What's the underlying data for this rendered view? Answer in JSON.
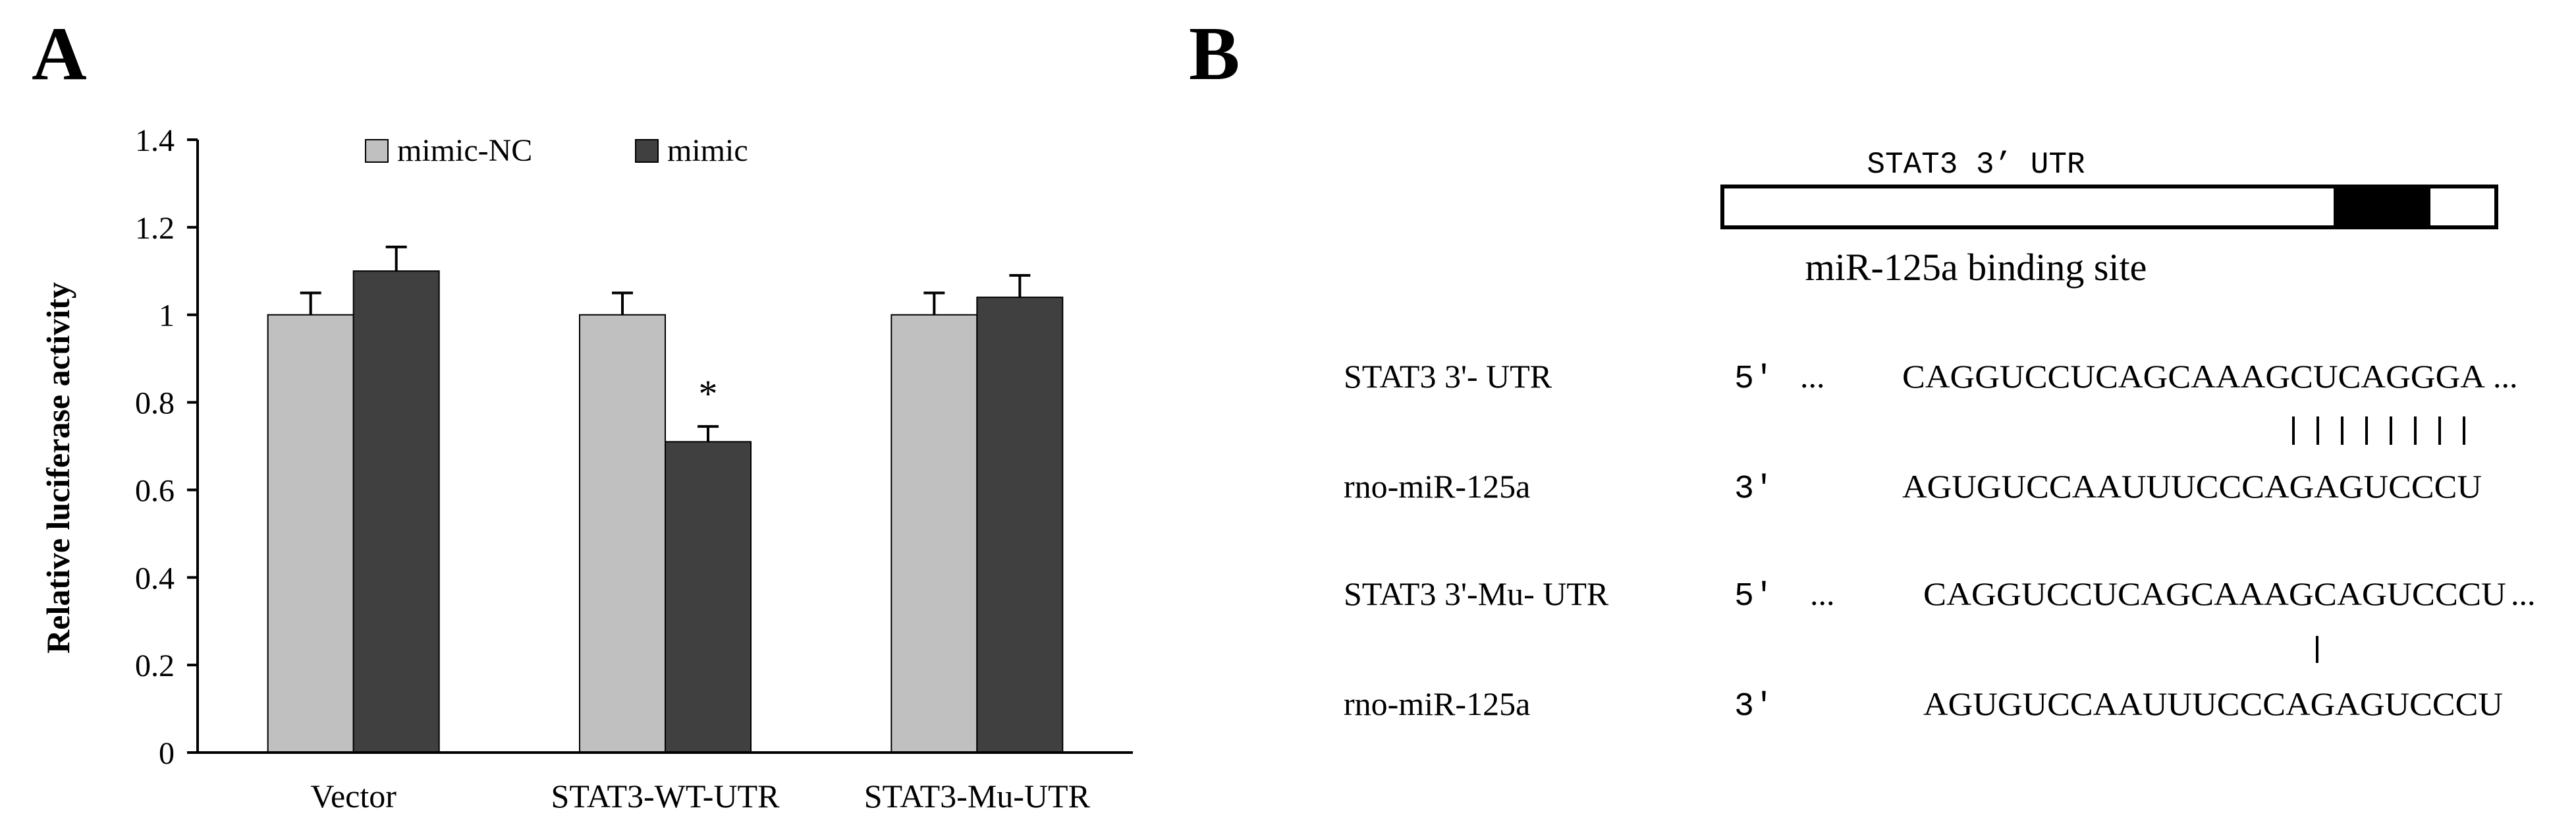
{
  "panels": {
    "a_letter": "A",
    "b_letter": "B"
  },
  "chart_data": {
    "type": "bar",
    "title": "",
    "xlabel": "",
    "ylabel": "Relative luciferase activity",
    "ylim": [
      0,
      1.4
    ],
    "yticks": [
      "0",
      "0.2",
      "0.4",
      "0.6",
      "0.8",
      "1",
      "1.2",
      "1.4"
    ],
    "categories": [
      "Vector",
      "STAT3-WT-UTR",
      "STAT3-Mu-UTR"
    ],
    "series": [
      {
        "name": "mimic-NC",
        "color": "#c0c0c0",
        "values": [
          1.0,
          1.0,
          1.0
        ],
        "errors": [
          0.05,
          0.05,
          0.05
        ]
      },
      {
        "name": "mimic",
        "color": "#404040",
        "values": [
          1.1,
          0.71,
          1.04
        ],
        "errors": [
          0.055,
          0.035,
          0.05
        ]
      }
    ],
    "annotations": [
      {
        "text": "*",
        "category": "STAT3-WT-UTR",
        "series": "mimic"
      }
    ],
    "legend": "top",
    "grid": false
  },
  "diagram": {
    "utr_label": "STAT3 3’ UTR",
    "binding_label": "miR-125a binding site",
    "rows": [
      {
        "name": "STAT3 3'- UTR",
        "prime": "5'",
        "dots_before": "...",
        "sequence": "CAGGUCCUCAGCAAAGCUCAGGGA",
        "dots_after": "..."
      },
      {
        "name": "rno-miR-125a",
        "prime": "3'",
        "dots_before": "",
        "sequence": "AGUGUCCAAUUUCCCAGAGUCCCU",
        "dots_after": ""
      },
      {
        "name": "STAT3 3'-Mu- UTR",
        "prime": "5'",
        "dots_before": "...",
        "sequence": "CAGGUCCUCAGCAAAGCAGUCCCU",
        "dots_after": "..."
      },
      {
        "name": "rno-miR-125a",
        "prime": "3'",
        "dots_before": "",
        "sequence": "AGUGUCCAAUUUCCCAGAGUCCCU",
        "dots_after": ""
      }
    ],
    "pair_marks_wt": 8,
    "pair_marks_mu": 1
  }
}
